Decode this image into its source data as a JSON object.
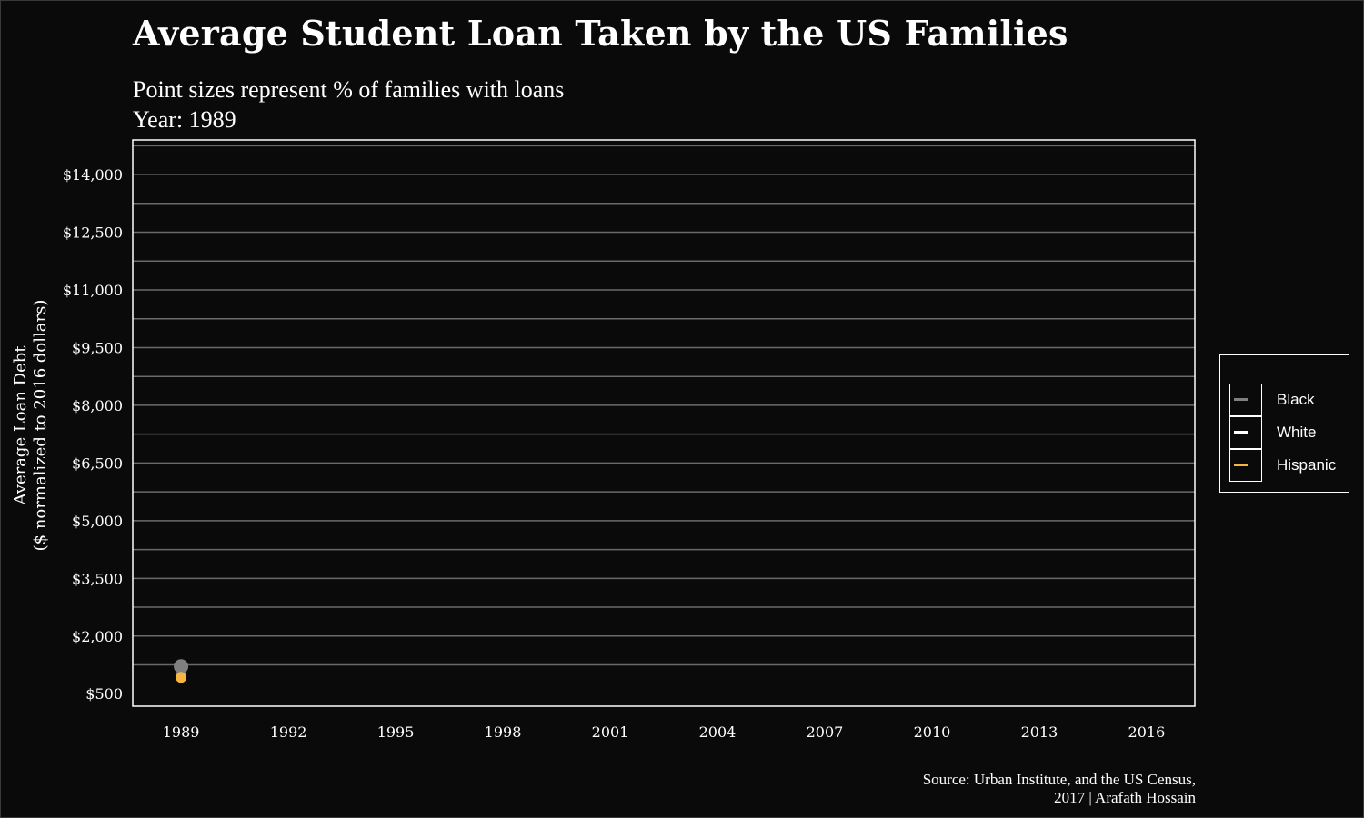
{
  "chart_data": {
    "type": "scatter",
    "title": "Average Student Loan Taken by the US Families",
    "subtitle_lines": [
      "Point sizes represent % of families with loans",
      "Year: 1989"
    ],
    "ylabel_lines": [
      "Average Loan Debt",
      "($ normalized to 2016 dollars)"
    ],
    "xlabel": "",
    "x_ticks": [
      "1989",
      "1992",
      "1995",
      "1998",
      "2001",
      "2004",
      "2007",
      "2010",
      "2013",
      "2016"
    ],
    "x_tick_values": [
      1989,
      1992,
      1995,
      1998,
      2001,
      2004,
      2007,
      2010,
      2013,
      2016
    ],
    "xlim": [
      1987.65,
      2017.35
    ],
    "y_ticks": [
      "$500",
      "$2,000",
      "$3,500",
      "$5,000",
      "$6,500",
      "$8,000",
      "$9,500",
      "$11,000",
      "$12,500",
      "$14,000"
    ],
    "y_tick_values": [
      500,
      2000,
      3500,
      5000,
      6500,
      8000,
      9500,
      11000,
      12500,
      14000
    ],
    "ylim": [
      175,
      14900
    ],
    "grid": "horizontal",
    "legend_position": "right",
    "series": [
      {
        "name": "Black",
        "color": "#808080",
        "points": [
          {
            "x": 1989,
            "y": 1208
          }
        ]
      },
      {
        "name": "White",
        "color": "#ffffff",
        "points": []
      },
      {
        "name": "Hispanic",
        "color": "#f5b740",
        "points": [
          {
            "x": 1989,
            "y": 925
          }
        ]
      }
    ],
    "caption_lines": [
      "Source: Urban Institute, and the US Census,",
      "2017 | Arafath Hossain"
    ]
  }
}
